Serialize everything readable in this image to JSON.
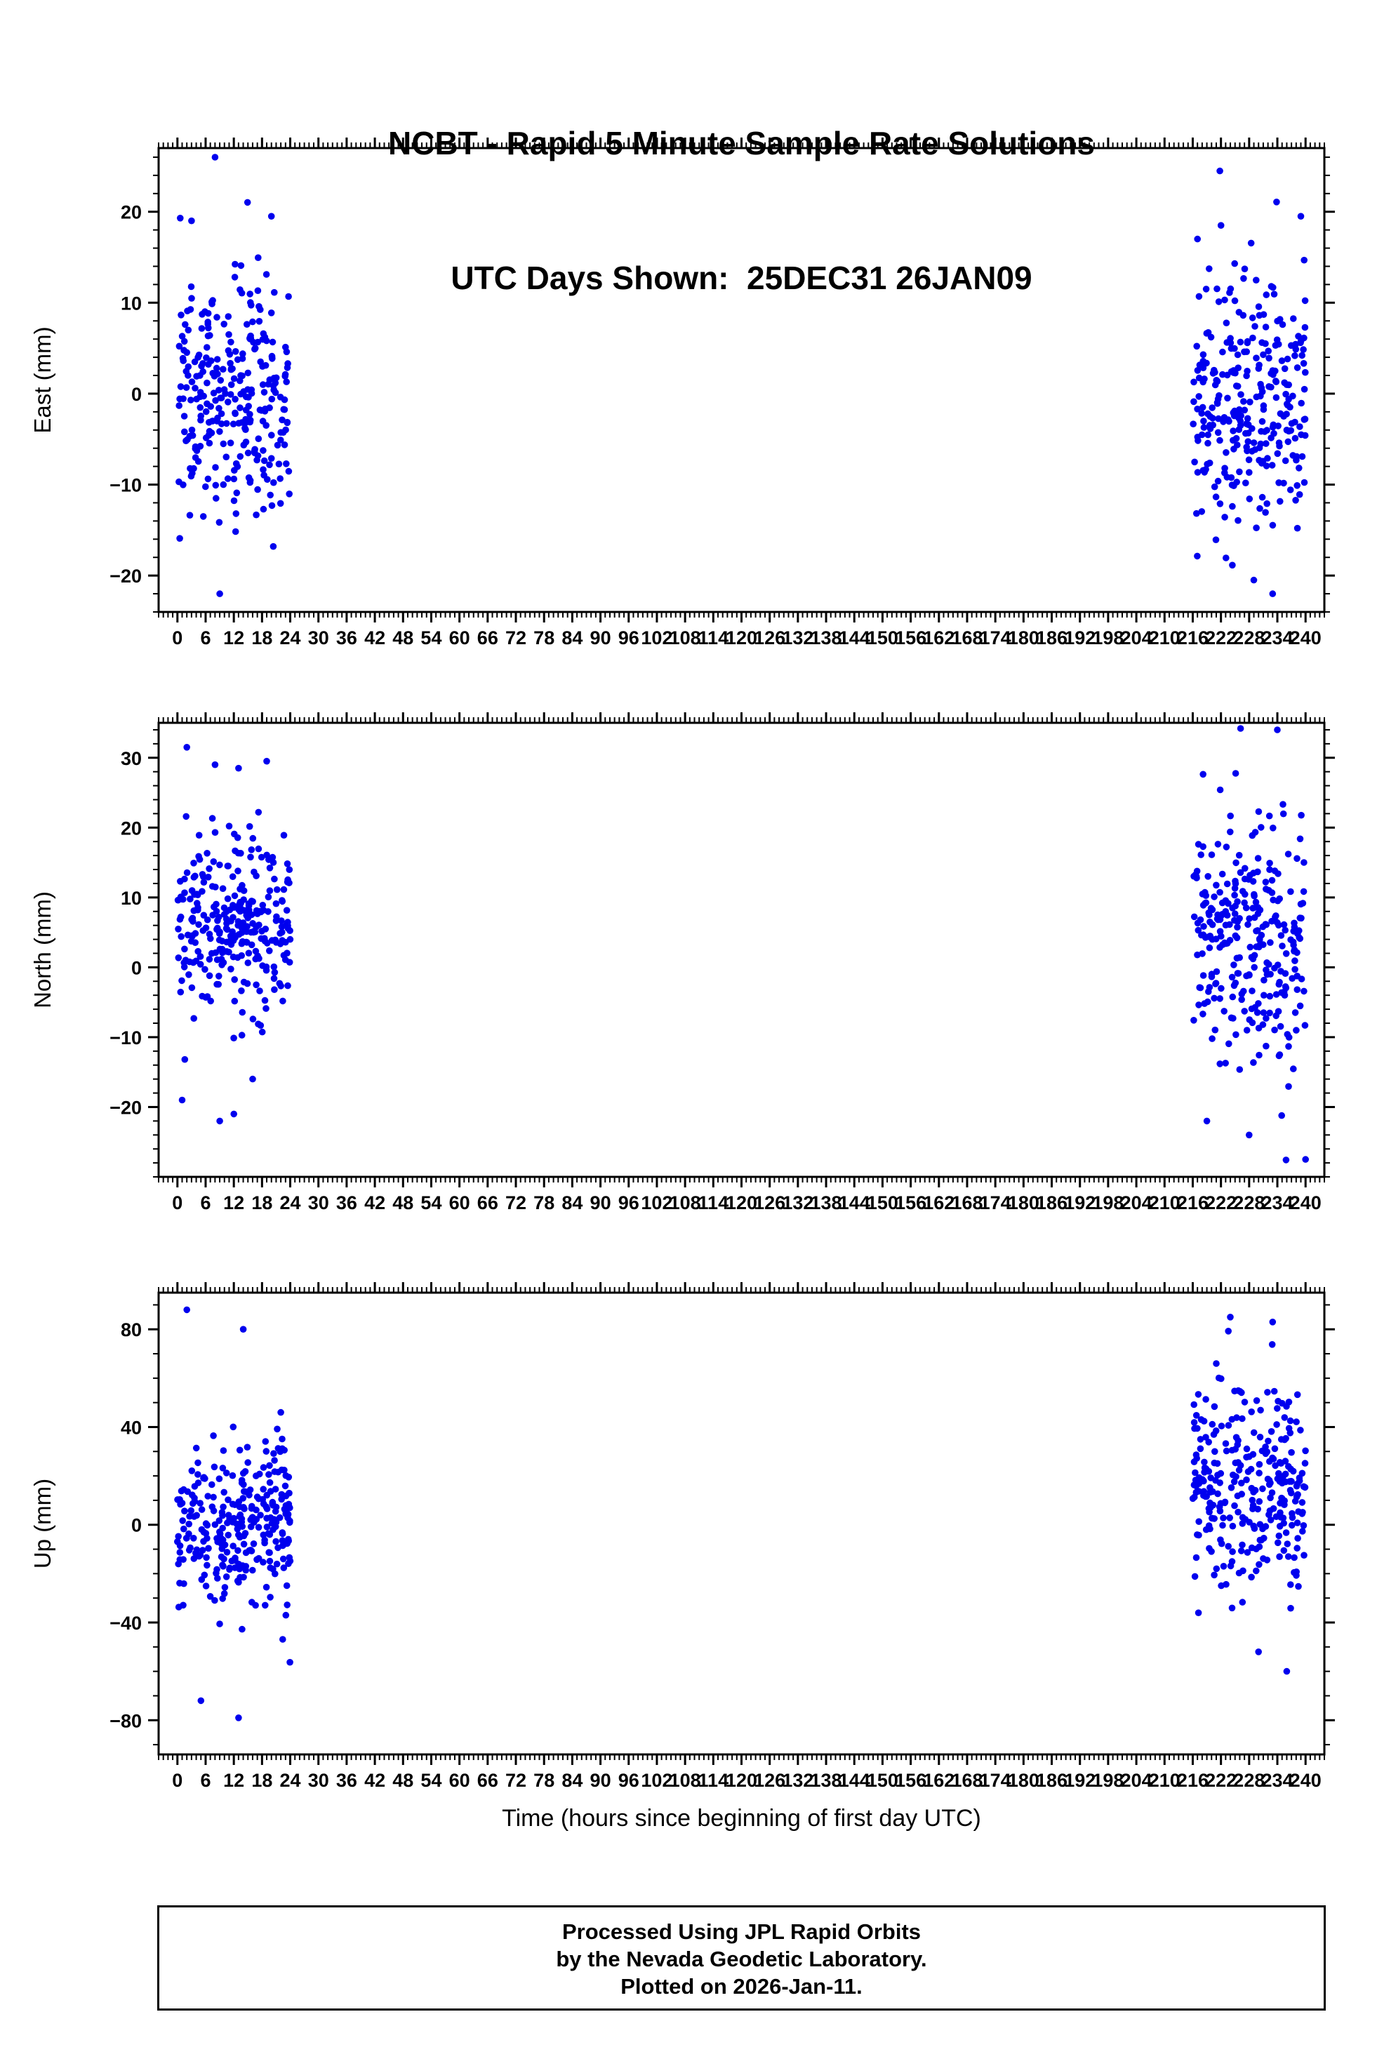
{
  "header": {
    "title": "NCBT - Rapid 5 Minute Sample Rate Solutions",
    "subtitle": "UTC Days Shown:  25DEC31 26JAN09"
  },
  "axes": {
    "x_label": "Time (hours since beginning of first day UTC)",
    "x_lim": [
      -4,
      244
    ],
    "x_minor_step": 1,
    "x_ticks": [
      0,
      6,
      12,
      18,
      24,
      30,
      36,
      42,
      48,
      54,
      60,
      66,
      72,
      78,
      84,
      90,
      96,
      102,
      108,
      114,
      120,
      126,
      132,
      138,
      144,
      150,
      156,
      162,
      168,
      174,
      180,
      186,
      192,
      198,
      204,
      210,
      216,
      222,
      228,
      234,
      240
    ]
  },
  "style": {
    "point_color": "#0000EE",
    "axis_color": "#000000"
  },
  "chart_data": [
    {
      "type": "scatter",
      "name": "east",
      "ylabel": "East (mm)",
      "ylim": [
        -24,
        27
      ],
      "yticks": [
        -20,
        -10,
        0,
        10,
        20
      ],
      "y_minor_step": 2,
      "seed": 101,
      "clusters": [
        {
          "x_range": [
            0,
            24
          ],
          "count": 288,
          "y_mean": 0,
          "y_std": 6.5
        },
        {
          "x_range": [
            216,
            240
          ],
          "count": 288,
          "y_mean": -1,
          "y_std": 7.5
        }
      ],
      "outliers": [
        [
          8,
          26
        ],
        [
          0.6,
          19.3
        ],
        [
          3,
          19
        ],
        [
          20,
          19.5
        ],
        [
          9,
          -22
        ],
        [
          233,
          -22
        ],
        [
          229,
          -20.5
        ],
        [
          222,
          18.5
        ],
        [
          239,
          19.5
        ],
        [
          217,
          17
        ]
      ]
    },
    {
      "type": "scatter",
      "name": "north",
      "ylabel": "North (mm)",
      "ylim": [
        -30,
        35
      ],
      "yticks": [
        -20,
        -10,
        0,
        10,
        20,
        30
      ],
      "y_minor_step": 2,
      "seed": 202,
      "clusters": [
        {
          "x_range": [
            0,
            24
          ],
          "count": 288,
          "y_mean": 6.5,
          "y_std": 6.5
        },
        {
          "x_range": [
            216,
            240
          ],
          "count": 288,
          "y_mean": 4,
          "y_std": 8.5
        }
      ],
      "outliers": [
        [
          2,
          31.5
        ],
        [
          8,
          29
        ],
        [
          13,
          28.5
        ],
        [
          19,
          29.5
        ],
        [
          1,
          -19
        ],
        [
          9,
          -22
        ],
        [
          12,
          -21
        ],
        [
          16,
          -16
        ],
        [
          234,
          34
        ],
        [
          240,
          -27.5
        ],
        [
          228,
          -24
        ],
        [
          219,
          -22
        ]
      ]
    },
    {
      "type": "scatter",
      "name": "up",
      "ylabel": "Up (mm)",
      "ylim": [
        -94,
        95
      ],
      "yticks": [
        -80,
        -40,
        0,
        40,
        80
      ],
      "y_minor_step": 10,
      "seed": 303,
      "clusters": [
        {
          "x_range": [
            0,
            24
          ],
          "count": 288,
          "y_mean": 0,
          "y_std": 17
        },
        {
          "x_range": [
            216,
            240
          ],
          "count": 288,
          "y_mean": 16,
          "y_std": 21
        }
      ],
      "outliers": [
        [
          2,
          88
        ],
        [
          14,
          80
        ],
        [
          22,
          46
        ],
        [
          13,
          -79
        ],
        [
          5,
          -72
        ],
        [
          224,
          85
        ],
        [
          233,
          83
        ],
        [
          221,
          66
        ],
        [
          236,
          -60
        ],
        [
          230,
          -52
        ]
      ]
    }
  ],
  "footer": {
    "line1": "Processed Using JPL Rapid Orbits",
    "line2": "by the Nevada Geodetic Laboratory.",
    "line3": "Plotted on 2026-Jan-11."
  }
}
